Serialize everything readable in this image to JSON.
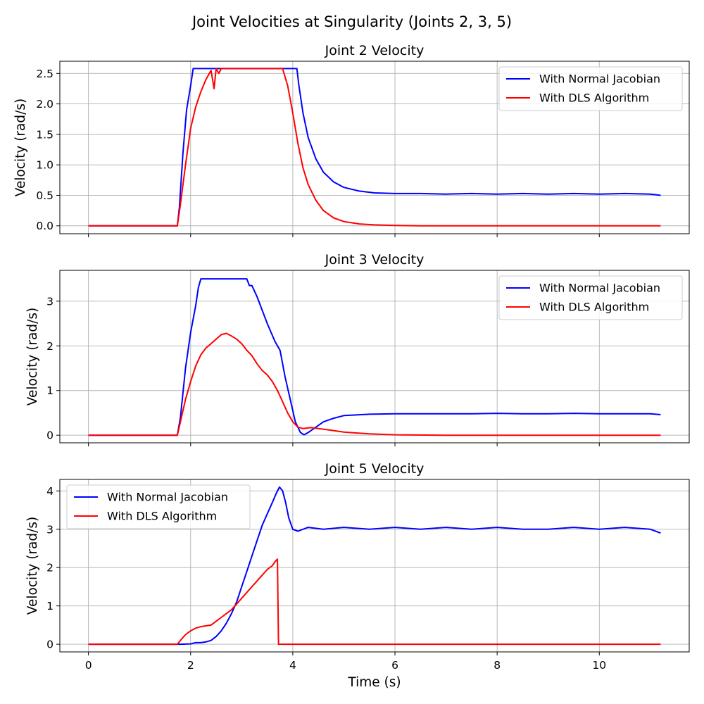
{
  "figure": {
    "suptitle": "Joint Velocities at Singularity (Joints 2, 3, 5)",
    "xlabel": "Time (s)"
  },
  "colors": {
    "normal": "#0000ff",
    "dls": "#ff0000",
    "grid": "#b0b0b0",
    "axes": "#000000"
  },
  "chart_data": [
    {
      "type": "line",
      "title": "Joint 2 Velocity",
      "xlabel": "",
      "ylabel": "Velocity (rad/s)",
      "xlim": [
        -0.56,
        11.76
      ],
      "ylim": [
        -0.13,
        2.7
      ],
      "xticks": [
        0,
        2,
        4,
        6,
        8,
        10
      ],
      "yticks": [
        0.0,
        0.5,
        1.0,
        1.5,
        2.0,
        2.5
      ],
      "ytick_labels": [
        "0.0",
        "0.5",
        "1.0",
        "1.5",
        "2.0",
        "2.5"
      ],
      "show_xtick_labels": false,
      "grid": true,
      "legend": "upper right",
      "series": [
        {
          "name": "With Normal Jacobian",
          "color": "#0000ff",
          "x": [
            0,
            1.74,
            1.78,
            1.85,
            1.92,
            2.0,
            2.05,
            2.1,
            3.0,
            4.08,
            4.12,
            4.2,
            4.3,
            4.45,
            4.6,
            4.8,
            5.0,
            5.3,
            5.6,
            6.0,
            6.5,
            7.0,
            7.5,
            8.0,
            8.5,
            9.0,
            9.5,
            10.0,
            10.5,
            11.0,
            11.2
          ],
          "y": [
            0,
            0,
            0.3,
            1.2,
            1.9,
            2.3,
            2.58,
            2.58,
            2.58,
            2.58,
            2.3,
            1.85,
            1.45,
            1.1,
            0.88,
            0.72,
            0.63,
            0.57,
            0.54,
            0.53,
            0.53,
            0.52,
            0.53,
            0.52,
            0.53,
            0.52,
            0.53,
            0.52,
            0.53,
            0.52,
            0.5
          ]
        },
        {
          "name": "With DLS Algorithm",
          "color": "#ff0000",
          "x": [
            0,
            1.74,
            1.8,
            1.9,
            2.0,
            2.1,
            2.2,
            2.3,
            2.4,
            2.46,
            2.5,
            2.55,
            2.6,
            3.0,
            3.5,
            3.8,
            3.9,
            4.0,
            4.1,
            4.2,
            4.3,
            4.45,
            4.6,
            4.8,
            5.0,
            5.3,
            5.6,
            6.0,
            6.5,
            7.0,
            8.0,
            9.0,
            10.0,
            11.2
          ],
          "y": [
            0,
            0,
            0.35,
            1.0,
            1.6,
            1.95,
            2.2,
            2.4,
            2.55,
            2.25,
            2.58,
            2.5,
            2.58,
            2.58,
            2.58,
            2.58,
            2.3,
            1.85,
            1.35,
            0.95,
            0.68,
            0.42,
            0.25,
            0.13,
            0.07,
            0.03,
            0.015,
            0.005,
            0,
            0,
            0,
            0,
            0,
            0
          ]
        }
      ]
    },
    {
      "type": "line",
      "title": "Joint 3 Velocity",
      "xlabel": "",
      "ylabel": "Velocity (rad/s)",
      "xlim": [
        -0.56,
        11.76
      ],
      "ylim": [
        -0.17,
        3.69
      ],
      "xticks": [
        0,
        2,
        4,
        6,
        8,
        10
      ],
      "yticks": [
        0,
        1,
        2,
        3
      ],
      "ytick_labels": [
        "0",
        "1",
        "2",
        "3"
      ],
      "show_xtick_labels": false,
      "grid": true,
      "legend": "upper right",
      "series": [
        {
          "name": "With Normal Jacobian",
          "color": "#0000ff",
          "x": [
            0,
            1.74,
            1.8,
            1.9,
            2.0,
            2.1,
            2.15,
            2.2,
            3.1,
            3.15,
            3.2,
            3.3,
            3.5,
            3.65,
            3.75,
            3.85,
            3.95,
            4.05,
            4.15,
            4.22,
            4.3,
            4.45,
            4.6,
            4.8,
            5.0,
            5.5,
            6.0,
            6.5,
            7.0,
            7.5,
            8.0,
            8.5,
            9.0,
            9.5,
            10.0,
            10.5,
            11.0,
            11.2
          ],
          "y": [
            0,
            0,
            0.4,
            1.5,
            2.3,
            2.9,
            3.3,
            3.5,
            3.5,
            3.35,
            3.35,
            3.1,
            2.5,
            2.1,
            1.9,
            1.3,
            0.8,
            0.3,
            0.06,
            0.01,
            0.06,
            0.18,
            0.3,
            0.38,
            0.44,
            0.47,
            0.48,
            0.48,
            0.48,
            0.48,
            0.49,
            0.48,
            0.48,
            0.49,
            0.48,
            0.48,
            0.48,
            0.46
          ]
        },
        {
          "name": "With DLS Algorithm",
          "color": "#ff0000",
          "x": [
            0,
            1.74,
            1.8,
            1.9,
            2.0,
            2.1,
            2.2,
            2.3,
            2.4,
            2.5,
            2.6,
            2.7,
            2.8,
            2.9,
            3.0,
            3.1,
            3.2,
            3.3,
            3.4,
            3.5,
            3.6,
            3.7,
            3.8,
            3.9,
            4.0,
            4.1,
            4.2,
            4.35,
            4.5,
            4.7,
            5.0,
            5.5,
            6.0,
            7.0,
            8.0,
            9.0,
            10.0,
            11.2
          ],
          "y": [
            0,
            0,
            0.3,
            0.8,
            1.2,
            1.55,
            1.8,
            1.95,
            2.05,
            2.15,
            2.25,
            2.28,
            2.22,
            2.15,
            2.05,
            1.9,
            1.78,
            1.6,
            1.45,
            1.35,
            1.2,
            1.0,
            0.75,
            0.5,
            0.3,
            0.18,
            0.15,
            0.17,
            0.15,
            0.12,
            0.07,
            0.03,
            0.01,
            0,
            0,
            0,
            0,
            0
          ]
        }
      ]
    },
    {
      "type": "line",
      "title": "Joint 5 Velocity",
      "xlabel": "Time (s)",
      "ylabel": "Velocity (rad/s)",
      "xlim": [
        -0.56,
        11.76
      ],
      "ylim": [
        -0.2,
        4.3
      ],
      "xticks": [
        0,
        2,
        4,
        6,
        8,
        10
      ],
      "yticks": [
        0,
        1,
        2,
        3,
        4
      ],
      "ytick_labels": [
        "0",
        "1",
        "2",
        "3",
        "4"
      ],
      "show_xtick_labels": true,
      "xtick_labels": [
        "0",
        "2",
        "4",
        "6",
        "8",
        "10"
      ],
      "grid": true,
      "legend": "upper left",
      "series": [
        {
          "name": "With Normal Jacobian",
          "color": "#0000ff",
          "x": [
            0,
            1.8,
            2.0,
            2.1,
            2.2,
            2.3,
            2.4,
            2.5,
            2.6,
            2.7,
            2.8,
            2.9,
            3.0,
            3.1,
            3.2,
            3.3,
            3.4,
            3.5,
            3.6,
            3.68,
            3.74,
            3.8,
            3.86,
            3.92,
            4.0,
            4.1,
            4.3,
            4.6,
            5.0,
            5.5,
            6.0,
            6.5,
            7.0,
            7.5,
            8.0,
            8.5,
            9.0,
            9.5,
            10.0,
            10.5,
            11.0,
            11.2
          ],
          "y": [
            0,
            0,
            0.01,
            0.04,
            0.04,
            0.06,
            0.1,
            0.2,
            0.35,
            0.55,
            0.8,
            1.1,
            1.5,
            1.9,
            2.3,
            2.7,
            3.1,
            3.4,
            3.7,
            3.95,
            4.1,
            4.0,
            3.7,
            3.3,
            3.0,
            2.95,
            3.05,
            3.0,
            3.05,
            3.0,
            3.05,
            3.0,
            3.05,
            3.0,
            3.05,
            3.0,
            3.0,
            3.05,
            3.0,
            3.05,
            3.0,
            2.9
          ]
        },
        {
          "name": "With DLS Algorithm",
          "color": "#ff0000",
          "x": [
            0,
            1.74,
            1.8,
            1.9,
            2.0,
            2.1,
            2.2,
            2.3,
            2.4,
            2.5,
            2.6,
            2.7,
            2.8,
            2.9,
            3.0,
            3.1,
            3.2,
            3.3,
            3.4,
            3.5,
            3.6,
            3.65,
            3.7,
            3.72,
            4.0,
            6.0,
            8.0,
            10.0,
            11.2
          ],
          "y": [
            0,
            0,
            0.1,
            0.25,
            0.35,
            0.42,
            0.46,
            0.48,
            0.5,
            0.6,
            0.7,
            0.8,
            0.9,
            1.05,
            1.2,
            1.35,
            1.5,
            1.65,
            1.8,
            1.95,
            2.05,
            2.15,
            2.22,
            0.0,
            0,
            0,
            0,
            0,
            0
          ]
        }
      ]
    }
  ]
}
